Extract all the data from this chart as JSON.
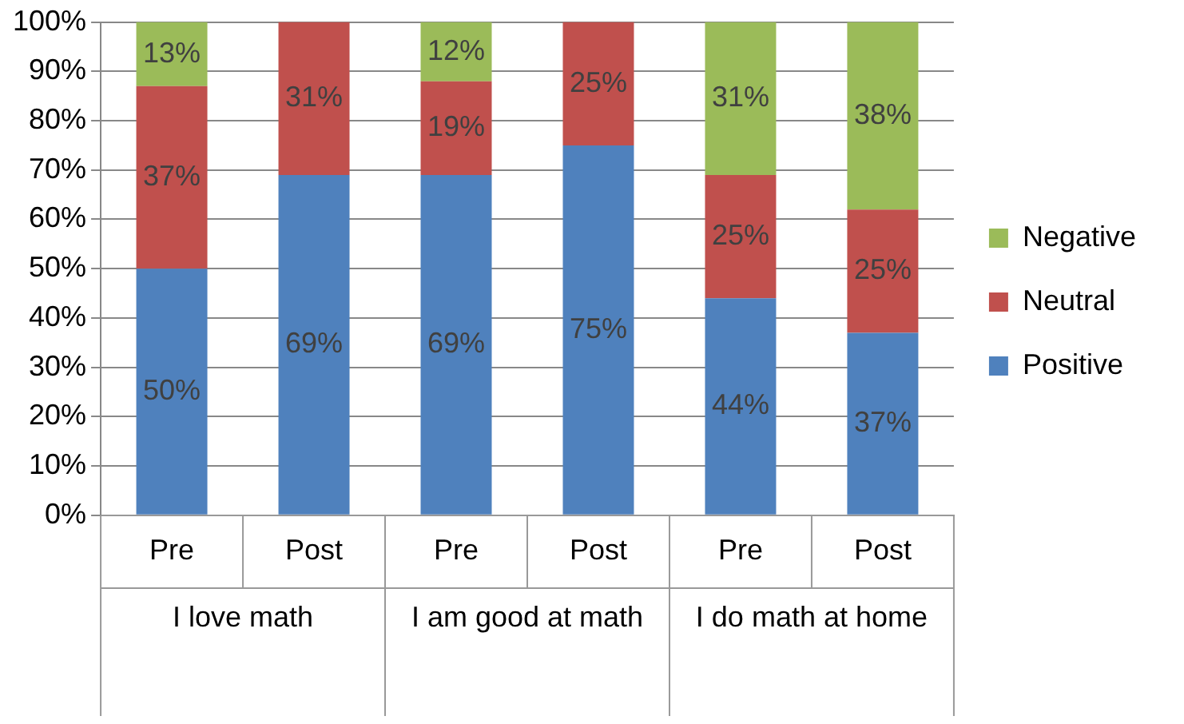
{
  "chart_data": {
    "type": "bar",
    "stacked": true,
    "categories": [
      "Pre",
      "Post",
      "Pre",
      "Post",
      "Pre",
      "Post"
    ],
    "annotations": [
      "I love math",
      "I am good at math",
      "I do math at home"
    ],
    "series": [
      {
        "name": "Positive",
        "color": "#4f81bd",
        "values": [
          50,
          69,
          69,
          75,
          44,
          37
        ],
        "value_labels": [
          "50%",
          "69%",
          "69%",
          "75%",
          "44%",
          "37%"
        ]
      },
      {
        "name": "Neutral",
        "color": "#c0504d",
        "values": [
          37,
          31,
          19,
          25,
          25,
          25
        ],
        "value_labels": [
          "37%",
          "31%",
          "19%",
          "25%",
          "25%",
          "25%"
        ]
      },
      {
        "name": "Negative",
        "color": "#9bbb59",
        "values": [
          13,
          0,
          12,
          0,
          31,
          38
        ],
        "value_labels": [
          "13%",
          null,
          "12%",
          null,
          "31%",
          "38%"
        ]
      }
    ],
    "ylim": [
      0,
      100
    ],
    "yticks": [
      {
        "value": 0,
        "label": "0%"
      },
      {
        "value": 10,
        "label": "10%"
      },
      {
        "value": 20,
        "label": "20%"
      },
      {
        "value": 30,
        "label": "30%"
      },
      {
        "value": 40,
        "label": "40%"
      },
      {
        "value": 50,
        "label": "50%"
      },
      {
        "value": 60,
        "label": "60%"
      },
      {
        "value": 70,
        "label": "70%"
      },
      {
        "value": 80,
        "label": "80%"
      },
      {
        "value": 90,
        "label": "90%"
      },
      {
        "value": 100,
        "label": "100%"
      }
    ],
    "grid": "y",
    "legend": "right"
  }
}
